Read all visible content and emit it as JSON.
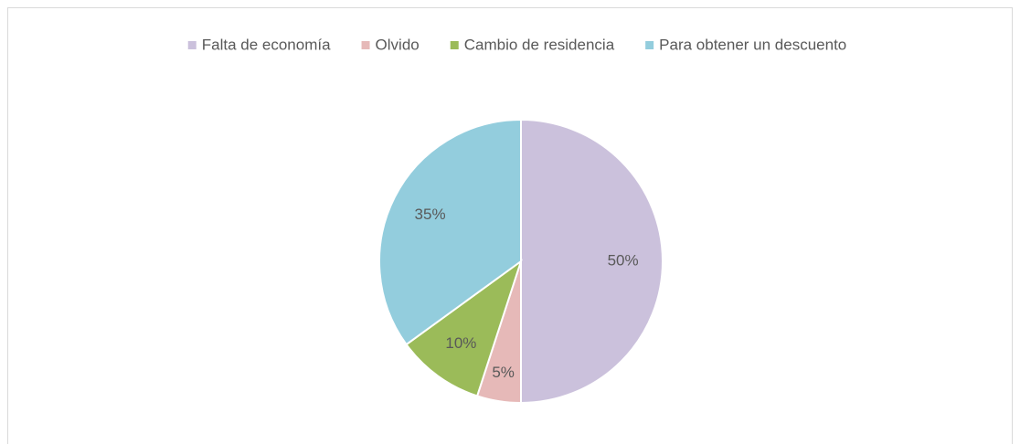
{
  "chart_data": {
    "type": "pie",
    "categories": [
      "Falta de economía",
      "Olvido",
      "Cambio de residencia",
      "Para obtener un descuento"
    ],
    "values": [
      50,
      5,
      10,
      35
    ],
    "value_labels": [
      "50%",
      "5%",
      "10%",
      "35%"
    ],
    "colors": [
      "#cbc1dc",
      "#e6b9b8",
      "#9bbb59",
      "#93cddd"
    ],
    "legend": "top"
  }
}
